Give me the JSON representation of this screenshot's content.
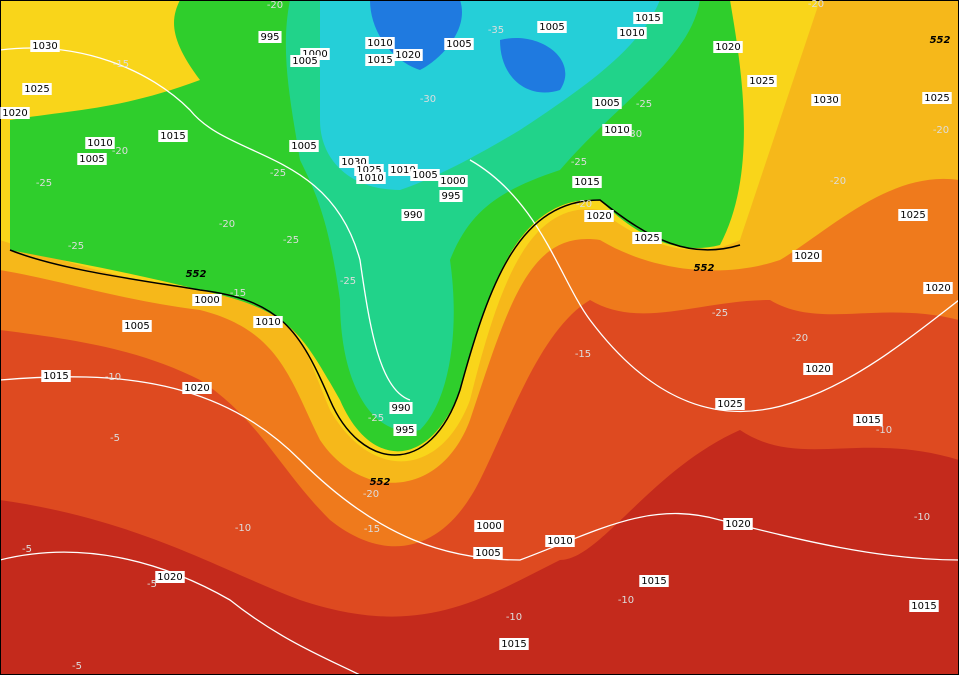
{
  "pressure_labels": [
    "1030",
    "1025",
    "1020",
    "995",
    "1000",
    "1005",
    "1010",
    "1015",
    "1020",
    "1005",
    "1005",
    "1015",
    "1010",
    "1020",
    "1025",
    "1030",
    "1025",
    "1005",
    "1010",
    "1015",
    "1010",
    "1005",
    "1005",
    "1030",
    "1025",
    "1010",
    "1010",
    "1005",
    "1000",
    "995",
    "990",
    "1015",
    "1020",
    "1025",
    "1025",
    "1020",
    "1020",
    "1000",
    "1010",
    "1005",
    "1015",
    "1020",
    "990",
    "995",
    "1020",
    "1025",
    "1015",
    "1020",
    "1000",
    "1005",
    "1010",
    "1020",
    "1015",
    "1015",
    "1015"
  ],
  "temperature_labels": [
    "-20",
    "-35",
    "-15",
    "-30",
    "-25",
    "-30",
    "-20",
    "-25",
    "-20",
    "-25",
    "-25",
    "-20",
    "-20",
    "-25",
    "-25",
    "-15",
    "-25",
    "-25",
    "-20",
    "-15",
    "-10",
    "-25",
    "-10",
    "-5",
    "-20",
    "-15",
    "-10",
    "-10",
    "-5",
    "-5",
    "-10",
    "-10",
    "-5",
    "-20",
    "-20"
  ],
  "height_labels": [
    "552",
    "552",
    "552",
    "552"
  ]
}
